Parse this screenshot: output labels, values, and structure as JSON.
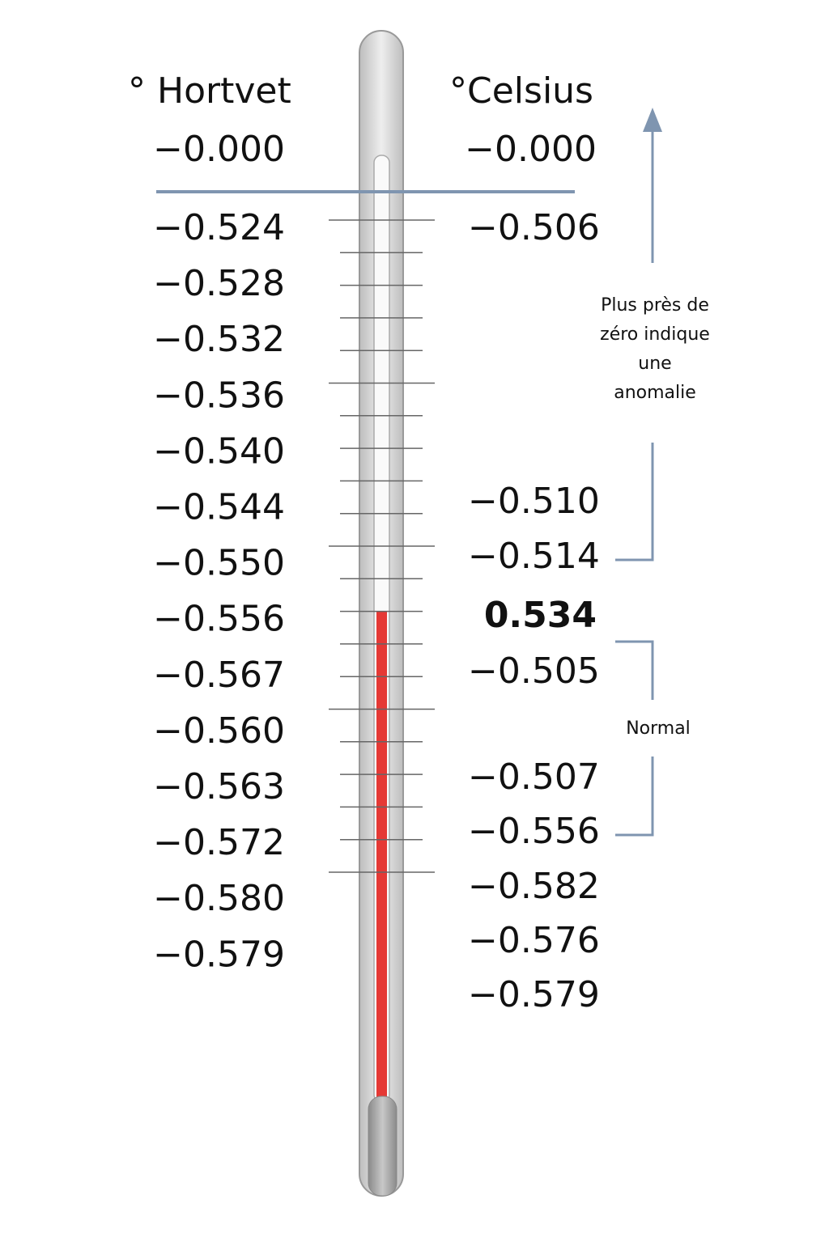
{
  "header": {
    "left": "° Hortvet",
    "right": "°Celsius"
  },
  "left_scale": {
    "top": "−0.000",
    "values": [
      "−0.524",
      "−0.528",
      "−0.532",
      "−0.536",
      "−0.540",
      "−0.544",
      "−0.550",
      "−0.556",
      "−0.567",
      "−0.560",
      "−0.563",
      "−0.572",
      "−0.580",
      "−0.579"
    ]
  },
  "right_scale": {
    "top": "−0.000",
    "values": [
      "−0.506",
      "−0.510",
      "−0.514",
      "0.534",
      "−0.505",
      "−0.507",
      "−0.556",
      "−0.582",
      "−0.576",
      "−0.579"
    ]
  },
  "annotations": {
    "anomaly": [
      "Plus près de",
      "zéro indique",
      "une",
      "anomalie"
    ],
    "normal": "Normal"
  }
}
